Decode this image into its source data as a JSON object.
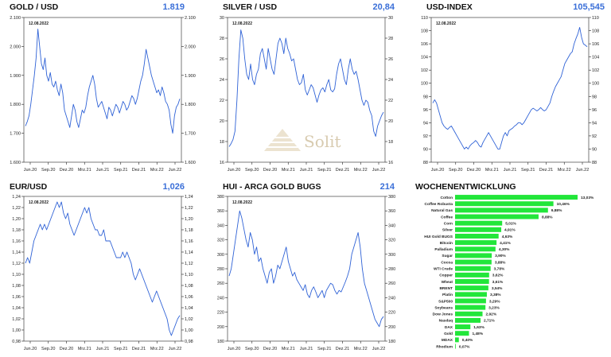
{
  "colors": {
    "line": "#2f62d6",
    "bar": "#22e63a",
    "value": "#3a6fd8",
    "watermark": "#d8cbb0"
  },
  "watermark": {
    "text": "Solit"
  },
  "chart_data": [
    {
      "id": "gold",
      "type": "line",
      "title": "GOLD / USD",
      "value": "1.819",
      "date": "12.08.2022",
      "xticks": [
        "Jun.20",
        "Sep.20",
        "Dez.20",
        "Mrz.21",
        "Jun.21",
        "Sep.21",
        "Dez.21",
        "Mrz.22",
        "Jun.22"
      ],
      "yticks": [
        "2.100",
        "2.000",
        "1.900",
        "1.800",
        "1.700",
        "1.600"
      ],
      "ylim": [
        1600,
        2100
      ],
      "y": [
        1725,
        1740,
        1760,
        1800,
        1850,
        1900,
        1960,
        2060,
        2000,
        1940,
        1920,
        1960,
        1900,
        1880,
        1910,
        1870,
        1860,
        1880,
        1850,
        1830,
        1870,
        1840,
        1780,
        1760,
        1740,
        1720,
        1760,
        1800,
        1780,
        1740,
        1720,
        1750,
        1780,
        1770,
        1790,
        1830,
        1860,
        1880,
        1900,
        1870,
        1820,
        1790,
        1800,
        1810,
        1790,
        1770,
        1750,
        1790,
        1780,
        1760,
        1780,
        1800,
        1790,
        1770,
        1790,
        1810,
        1800,
        1780,
        1790,
        1810,
        1830,
        1820,
        1800,
        1820,
        1850,
        1880,
        1900,
        1940,
        1990,
        1960,
        1930,
        1900,
        1880,
        1860,
        1840,
        1850,
        1830,
        1860,
        1840,
        1810,
        1800,
        1780,
        1730,
        1700,
        1760,
        1790,
        1800,
        1819
      ]
    },
    {
      "id": "silver",
      "type": "line",
      "title": "SILVER / USD",
      "value": "20,84",
      "date": "12.08.2022",
      "xticks": [
        "Jun.20",
        "Sep.20",
        "Dez.20",
        "Mrz.21",
        "Jun.21",
        "Sep.21",
        "Dez.21",
        "Mrz.22",
        "Jun.22"
      ],
      "yticks": [
        "30",
        "28",
        "26",
        "24",
        "22",
        "20",
        "18",
        "16"
      ],
      "ylim": [
        16,
        30
      ],
      "y": [
        17.5,
        17.8,
        18.2,
        19,
        22,
        26,
        28.8,
        28,
        26,
        24.5,
        24,
        25.5,
        24,
        23.5,
        24.5,
        25,
        26.5,
        27,
        26,
        25,
        27,
        26,
        25,
        24.5,
        26,
        27.5,
        28,
        27.5,
        26.5,
        28,
        27,
        26.5,
        25.8,
        26,
        25,
        24,
        23.5,
        23.7,
        24.5,
        23,
        22.5,
        23,
        23.5,
        23.2,
        22.5,
        21.8,
        22.5,
        23,
        23.2,
        22.8,
        23.5,
        24,
        23,
        22.8,
        23.1,
        24.5,
        25.5,
        26,
        25,
        24,
        23.5,
        25,
        26,
        25,
        24.5,
        24.8,
        24,
        23,
        22,
        21.5,
        22,
        21.8,
        21,
        20.5,
        19,
        18.5,
        19.5,
        20,
        20.5,
        20.84
      ]
    },
    {
      "id": "usd",
      "type": "line",
      "title": "USD-INDEX",
      "value": "105,545",
      "date": "12.08.2022",
      "xticks": [
        "Jun.20",
        "Sep.20",
        "Dez.20",
        "Mrz.21",
        "Jun.21",
        "Sep.21",
        "Dez.21",
        "Mrz.22",
        "Jun.22"
      ],
      "yticks": [
        "110",
        "108",
        "106",
        "104",
        "102",
        "100",
        "98",
        "96",
        "94",
        "92",
        "90",
        "88"
      ],
      "ylim": [
        88,
        110
      ],
      "y": [
        97,
        97.5,
        97,
        96,
        95,
        94,
        93.5,
        93.2,
        93,
        93.3,
        93.5,
        93,
        92.5,
        92,
        91.5,
        91,
        90.5,
        90,
        90.3,
        90,
        90.5,
        90.8,
        91,
        91.3,
        91,
        90.5,
        90.3,
        91,
        91.5,
        92,
        92.5,
        92,
        91.5,
        91,
        90.5,
        90,
        90,
        91,
        92,
        92.5,
        92,
        92.8,
        93,
        93.2,
        93.5,
        93.7,
        94,
        94,
        93.7,
        94,
        94.5,
        95,
        95.5,
        96,
        96.2,
        96,
        95.8,
        96,
        96.3,
        96,
        95.8,
        96,
        96.5,
        97,
        98,
        98.8,
        99.5,
        100,
        100.5,
        101,
        102,
        103,
        103.5,
        104,
        104.5,
        104.8,
        106,
        106.8,
        107.5,
        108.5,
        107,
        106,
        105.8,
        105.545
      ]
    },
    {
      "id": "eur",
      "type": "line",
      "title": "EUR/USD",
      "value": "1,026",
      "date": "12.08.2022",
      "xticks": [
        "Jun.20",
        "Sep.20",
        "Dez.20",
        "Mrz.21",
        "Jun.21",
        "Sep.21",
        "Dez.21",
        "Mrz.22",
        "Jun.22"
      ],
      "yticks": [
        "1,24",
        "1,22",
        "1,20",
        "1,18",
        "1,16",
        "1,14",
        "1,12",
        "1,10",
        "1,08",
        "1,06",
        "1,04",
        "1,02",
        "1,00",
        "0,98"
      ],
      "ylim": [
        0.98,
        1.24
      ],
      "y": [
        1.12,
        1.13,
        1.12,
        1.14,
        1.16,
        1.17,
        1.18,
        1.19,
        1.18,
        1.19,
        1.18,
        1.19,
        1.2,
        1.21,
        1.22,
        1.23,
        1.22,
        1.23,
        1.21,
        1.2,
        1.21,
        1.19,
        1.18,
        1.17,
        1.18,
        1.19,
        1.2,
        1.21,
        1.22,
        1.21,
        1.22,
        1.2,
        1.19,
        1.18,
        1.18,
        1.17,
        1.17,
        1.18,
        1.16,
        1.16,
        1.16,
        1.15,
        1.14,
        1.13,
        1.13,
        1.13,
        1.14,
        1.13,
        1.14,
        1.13,
        1.12,
        1.1,
        1.09,
        1.1,
        1.11,
        1.1,
        1.09,
        1.08,
        1.07,
        1.06,
        1.05,
        1.06,
        1.07,
        1.06,
        1.05,
        1.04,
        1.03,
        1.02,
        1.0,
        0.99,
        1.0,
        1.01,
        1.02,
        1.026
      ]
    },
    {
      "id": "hui",
      "type": "line",
      "title": "HUI - ARCA GOLD BUGS",
      "value": "214",
      "date": "12.08.2022",
      "xticks": [
        "Jun.20",
        "Sep.20",
        "Dez.20",
        "Mrz.21",
        "Jun.21",
        "Sep.21",
        "Dez.21",
        "Mrz.22",
        "Jun.22"
      ],
      "yticks": [
        "380",
        "360",
        "340",
        "320",
        "300",
        "280",
        "260",
        "240",
        "220",
        "200",
        "180"
      ],
      "ylim": [
        180,
        380
      ],
      "y": [
        270,
        280,
        300,
        320,
        340,
        360,
        350,
        335,
        320,
        310,
        330,
        320,
        300,
        310,
        290,
        295,
        280,
        270,
        260,
        275,
        280,
        260,
        270,
        285,
        280,
        290,
        300,
        310,
        290,
        280,
        270,
        275,
        265,
        260,
        255,
        250,
        258,
        245,
        240,
        250,
        255,
        248,
        240,
        245,
        250,
        240,
        250,
        255,
        260,
        258,
        250,
        245,
        250,
        248,
        255,
        262,
        270,
        280,
        300,
        310,
        320,
        330,
        310,
        280,
        260,
        250,
        240,
        230,
        220,
        210,
        205,
        200,
        210,
        214
      ]
    },
    {
      "id": "weekly",
      "type": "bar",
      "title": "WOCHENENTWICKLUNG",
      "categories": [
        "Cotton",
        "Coffee Robusta",
        "Natural Gas",
        "Coffee",
        "Corn",
        "Silver",
        "HUI Gold BUGS",
        "Bitcoin",
        "Palladium",
        "Sugar",
        "Cocoa",
        "WTI Crude",
        "Copper",
        "Wheat",
        "BRENT",
        "Platin",
        "S&P500",
        "Soybeans",
        "Dow Jones",
        "Nasdaq",
        "DAX",
        "Gold",
        "MDAX",
        "Rhodium"
      ],
      "values": [
        13.03,
        10.46,
        9.88,
        8.88,
        5.01,
        4.91,
        4.63,
        4.41,
        4.3,
        3.9,
        3.88,
        3.78,
        3.62,
        3.61,
        3.54,
        3.38,
        3.29,
        3.23,
        2.92,
        2.71,
        1.63,
        1.48,
        0.4,
        0.07
      ],
      "labels": [
        "13,03%",
        "10,46%",
        "9,88%",
        "8,88%",
        "5,01%",
        "4,91%",
        "4,63%",
        "4,41%",
        "4,30%",
        "3,90%",
        "3,88%",
        "3,78%",
        "3,62%",
        "3,61%",
        "3,54%",
        "3,38%",
        "3,29%",
        "3,23%",
        "2,92%",
        "2,71%",
        "1,63%",
        "1,48%",
        "0,40%",
        "0,07%"
      ]
    }
  ]
}
